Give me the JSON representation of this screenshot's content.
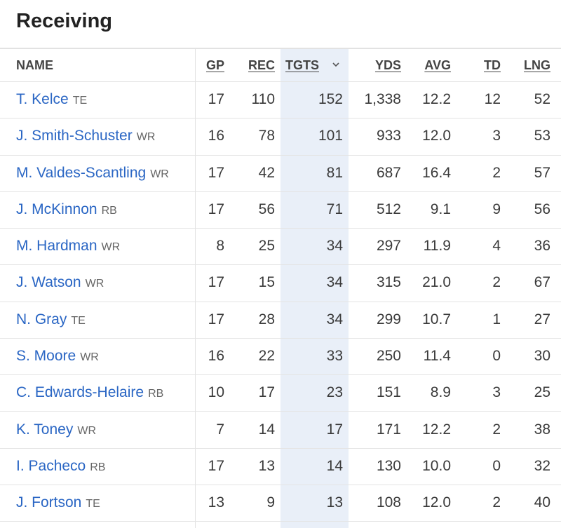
{
  "title": "Receiving",
  "table": {
    "headers": [
      "NAME",
      "GP",
      "REC",
      "TGTS",
      "YDS",
      "AVG",
      "TD",
      "LNG"
    ],
    "rows": [
      {
        "name": "T. Kelce",
        "position": "TE",
        "cells": [
          "17",
          "110",
          "152",
          "1,338",
          "12.2",
          "12",
          "52"
        ]
      },
      {
        "name": "J. Smith-Schuster",
        "position": "WR",
        "cells": [
          "16",
          "78",
          "101",
          "933",
          "12.0",
          "3",
          "53"
        ]
      },
      {
        "name": "M. Valdes-Scantling",
        "position": "WR",
        "cells": [
          "17",
          "42",
          "81",
          "687",
          "16.4",
          "2",
          "57"
        ]
      },
      {
        "name": "J. McKinnon",
        "position": "RB",
        "cells": [
          "17",
          "56",
          "71",
          "512",
          "9.1",
          "9",
          "56"
        ]
      },
      {
        "name": "M. Hardman",
        "position": "WR",
        "cells": [
          "8",
          "25",
          "34",
          "297",
          "11.9",
          "4",
          "36"
        ]
      },
      {
        "name": "J. Watson",
        "position": "WR",
        "cells": [
          "17",
          "15",
          "34",
          "315",
          "21.0",
          "2",
          "67"
        ]
      },
      {
        "name": "N. Gray",
        "position": "TE",
        "cells": [
          "17",
          "28",
          "34",
          "299",
          "10.7",
          "1",
          "27"
        ]
      },
      {
        "name": "S. Moore",
        "position": "WR",
        "cells": [
          "16",
          "22",
          "33",
          "250",
          "11.4",
          "0",
          "30"
        ]
      },
      {
        "name": "C. Edwards-Helaire",
        "position": "RB",
        "cells": [
          "10",
          "17",
          "23",
          "151",
          "8.9",
          "3",
          "25"
        ]
      },
      {
        "name": "K. Toney",
        "position": "WR",
        "cells": [
          "7",
          "14",
          "17",
          "171",
          "12.2",
          "2",
          "38"
        ]
      },
      {
        "name": "I. Pacheco",
        "position": "RB",
        "cells": [
          "17",
          "13",
          "14",
          "130",
          "10.0",
          "0",
          "32"
        ]
      },
      {
        "name": "J. Fortson",
        "position": "TE",
        "cells": [
          "13",
          "9",
          "13",
          "108",
          "12.0",
          "2",
          "40"
        ]
      }
    ]
  }
}
